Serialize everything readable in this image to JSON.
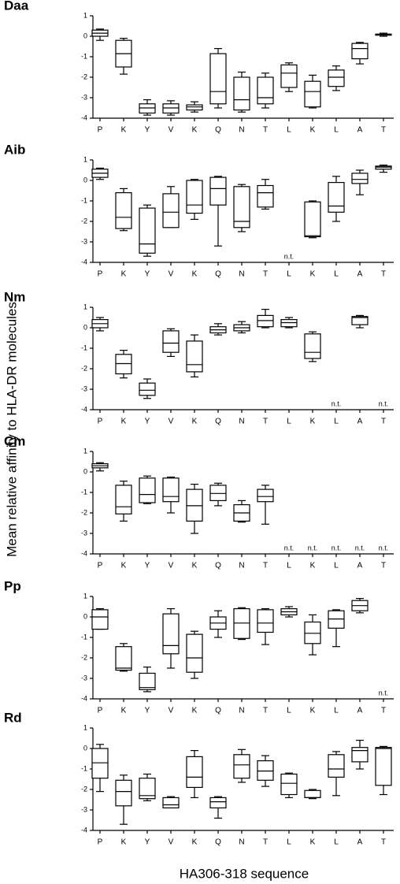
{
  "axis_labels": {
    "y": "Mean relative affinity to HLA-DR molecules",
    "x": "HA306-318 sequence"
  },
  "chart_data": [
    {
      "type": "box",
      "title": "Daa",
      "missing_label": "n.t.",
      "ylim": [
        -4,
        1
      ],
      "yticks": [
        1,
        0,
        -1,
        -2,
        -3,
        -4
      ],
      "categories": [
        "P",
        "K",
        "Y",
        "V",
        "K",
        "Q",
        "N",
        "T",
        "L",
        "K",
        "L",
        "A",
        "T"
      ],
      "boxes": [
        [
          -0.2,
          0,
          0.15,
          0.3,
          0.35
        ],
        [
          -1.85,
          -1.5,
          -0.85,
          -0.2,
          -0.1
        ],
        [
          -3.85,
          -3.75,
          -3.5,
          -3.3,
          -3.1
        ],
        [
          -3.85,
          -3.75,
          -3.5,
          -3.3,
          -3.15
        ],
        [
          -3.7,
          -3.6,
          -3.45,
          -3.35,
          -3.2
        ],
        [
          -3.5,
          -3.3,
          -2.7,
          -0.85,
          -0.6
        ],
        [
          -3.7,
          -3.6,
          -3.1,
          -2.0,
          -1.75
        ],
        [
          -3.5,
          -3.3,
          -3.0,
          -2.0,
          -1.8
        ],
        [
          -2.7,
          -2.5,
          -1.8,
          -1.4,
          -1.3
        ],
        [
          -3.5,
          -3.45,
          -2.7,
          -2.2,
          -1.9
        ],
        [
          -2.65,
          -2.45,
          -2.0,
          -1.65,
          -1.45
        ],
        [
          -1.35,
          -1.1,
          -0.6,
          -0.35,
          -0.3
        ],
        [
          0.0,
          0.05,
          0.1,
          0.1,
          0.15
        ]
      ]
    },
    {
      "type": "box",
      "title": "Aib",
      "missing_label": "n.t.",
      "ylim": [
        -4,
        1
      ],
      "yticks": [
        1,
        0,
        -1,
        -2,
        -3,
        -4
      ],
      "categories": [
        "P",
        "K",
        "Y",
        "V",
        "K",
        "Q",
        "N",
        "T",
        "L",
        "K",
        "L",
        "A",
        "T"
      ],
      "boxes": [
        [
          0.05,
          0.15,
          0.35,
          0.55,
          0.6
        ],
        [
          -2.45,
          -2.35,
          -1.8,
          -0.6,
          -0.4
        ],
        [
          -3.7,
          -3.55,
          -3.1,
          -1.35,
          -1.2
        ],
        [
          -2.3,
          -2.3,
          -1.55,
          -0.65,
          -0.3
        ],
        [
          -1.9,
          -1.6,
          -1.2,
          0.0,
          0.05
        ],
        [
          -3.2,
          -1.2,
          -0.4,
          0.15,
          0.2
        ],
        [
          -2.5,
          -2.3,
          -2.0,
          -0.3,
          -0.2
        ],
        [
          -1.4,
          -1.3,
          -0.6,
          -0.25,
          0.05
        ],
        null,
        [
          -2.8,
          -2.75,
          -2.7,
          -1.05,
          -1.0
        ],
        [
          -2.0,
          -1.55,
          -1.25,
          -0.1,
          0.2
        ],
        [
          -0.7,
          -0.15,
          0.05,
          0.35,
          0.5
        ],
        [
          0.4,
          0.55,
          0.65,
          0.7,
          0.75
        ]
      ]
    },
    {
      "type": "box",
      "title": "Nm",
      "missing_label": "n.t.",
      "ylim": [
        -4,
        1
      ],
      "yticks": [
        1,
        0,
        -1,
        -2,
        -3,
        -4
      ],
      "categories": [
        "P",
        "K",
        "Y",
        "V",
        "K",
        "Q",
        "N",
        "T",
        "L",
        "K",
        "L",
        "A",
        "T"
      ],
      "boxes": [
        [
          -0.15,
          0.0,
          0.2,
          0.4,
          0.5
        ],
        [
          -2.45,
          -2.25,
          -1.75,
          -1.3,
          -1.1
        ],
        [
          -3.45,
          -3.3,
          -3.05,
          -2.7,
          -2.5
        ],
        [
          -1.4,
          -1.2,
          -0.75,
          -0.15,
          -0.05
        ],
        [
          -2.4,
          -2.15,
          -1.8,
          -0.65,
          -0.35
        ],
        [
          -0.35,
          -0.25,
          -0.1,
          0.05,
          0.2
        ],
        [
          -0.25,
          -0.15,
          0.0,
          0.15,
          0.3
        ],
        [
          0.0,
          0.05,
          0.35,
          0.6,
          0.9
        ],
        [
          0.0,
          0.05,
          0.25,
          0.4,
          0.5
        ],
        [
          -1.65,
          -1.5,
          -1.2,
          -0.3,
          -0.2
        ],
        null,
        [
          0.0,
          0.15,
          0.5,
          0.55,
          0.6
        ],
        null
      ]
    },
    {
      "type": "box",
      "title": "Cm",
      "missing_label": "n.t.",
      "ylim": [
        -4,
        1
      ],
      "yticks": [
        1,
        0,
        -1,
        -2,
        -3,
        -4
      ],
      "categories": [
        "P",
        "K",
        "Y",
        "V",
        "K",
        "Q",
        "N",
        "T",
        "L",
        "K",
        "L",
        "A",
        "T"
      ],
      "boxes": [
        [
          0.05,
          0.2,
          0.3,
          0.4,
          0.45
        ],
        [
          -2.4,
          -2.05,
          -1.7,
          -0.65,
          -0.45
        ],
        [
          -1.55,
          -1.5,
          -1.1,
          -0.3,
          -0.2
        ],
        [
          -2.0,
          -1.45,
          -1.2,
          -0.3,
          -0.25
        ],
        [
          -3.0,
          -2.4,
          -1.65,
          -0.85,
          -0.6
        ],
        [
          -1.65,
          -1.4,
          -1.05,
          -0.65,
          -0.55
        ],
        [
          -2.45,
          -2.4,
          -2.0,
          -1.6,
          -1.4
        ],
        [
          -2.55,
          -1.45,
          -1.2,
          -0.85,
          -0.65
        ],
        null,
        null,
        null,
        null,
        null
      ]
    },
    {
      "type": "box",
      "title": "Pp",
      "missing_label": "n.t.",
      "ylim": [
        -4,
        1
      ],
      "yticks": [
        1,
        0,
        -1,
        -2,
        -3,
        -4
      ],
      "categories": [
        "P",
        "K",
        "Y",
        "V",
        "K",
        "Q",
        "N",
        "T",
        "L",
        "K",
        "L",
        "A",
        "T"
      ],
      "boxes": [
        [
          -0.6,
          -0.6,
          0.0,
          0.35,
          0.4
        ],
        [
          -2.65,
          -2.6,
          -2.5,
          -1.45,
          -1.3
        ],
        [
          -3.65,
          -3.55,
          -3.45,
          -2.75,
          -2.45
        ],
        [
          -2.5,
          -1.8,
          -1.4,
          0.15,
          0.4
        ],
        [
          -3.0,
          -2.7,
          -2.0,
          -0.85,
          -0.7
        ],
        [
          -1.0,
          -0.6,
          -0.3,
          0.0,
          0.3
        ],
        [
          -1.1,
          -1.05,
          -0.3,
          0.4,
          0.45
        ],
        [
          -1.35,
          -0.75,
          -0.3,
          0.35,
          0.4
        ],
        [
          0.0,
          0.1,
          0.25,
          0.4,
          0.5
        ],
        [
          -1.85,
          -1.3,
          -0.8,
          -0.25,
          0.1
        ],
        [
          -1.45,
          -0.55,
          -0.1,
          0.3,
          0.35
        ],
        [
          0.2,
          0.3,
          0.55,
          0.8,
          0.9
        ],
        null
      ]
    },
    {
      "type": "box",
      "title": "Rd",
      "missing_label": "n.t.",
      "ylim": [
        -4,
        1
      ],
      "yticks": [
        1,
        0,
        -1,
        -2,
        -3,
        -4
      ],
      "categories": [
        "P",
        "K",
        "Y",
        "V",
        "K",
        "Q",
        "N",
        "T",
        "L",
        "K",
        "L",
        "A",
        "T"
      ],
      "boxes": [
        [
          -2.1,
          -1.45,
          -0.7,
          0.0,
          0.2
        ],
        [
          -3.7,
          -2.8,
          -2.1,
          -1.55,
          -1.3
        ],
        [
          -2.55,
          -2.45,
          -2.3,
          -1.45,
          -1.25
        ],
        [
          -2.9,
          -2.9,
          -2.75,
          -2.4,
          -2.35
        ],
        [
          -2.4,
          -1.9,
          -1.4,
          -0.4,
          -0.1
        ],
        [
          -3.4,
          -2.9,
          -2.6,
          -2.4,
          -2.35
        ],
        [
          -1.65,
          -1.45,
          -0.8,
          -0.3,
          -0.05
        ],
        [
          -1.85,
          -1.55,
          -1.1,
          -0.6,
          -0.35
        ],
        [
          -2.4,
          -2.25,
          -1.7,
          -1.25,
          -1.2
        ],
        [
          -2.45,
          -2.4,
          -2.4,
          -2.05,
          -2.0
        ],
        [
          -2.3,
          -1.4,
          -1.0,
          -0.3,
          -0.15
        ],
        [
          -1.0,
          -0.65,
          -0.1,
          0.05,
          0.4
        ],
        [
          -2.25,
          -1.8,
          0.0,
          0.05,
          0.1
        ]
      ]
    }
  ]
}
